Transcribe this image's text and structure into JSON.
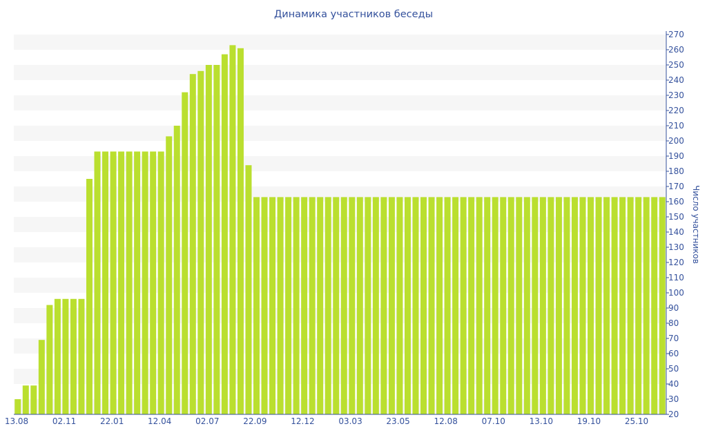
{
  "chart_title": "Динамика участников беседы",
  "chart_data": {
    "type": "bar",
    "title": "Динамика участников беседы",
    "xlabel": "",
    "ylabel": "Число участников",
    "ylim": [
      20,
      270
    ],
    "y_axis_position": "right",
    "y_ticks": [
      20,
      30,
      40,
      50,
      60,
      70,
      80,
      90,
      100,
      110,
      120,
      130,
      140,
      150,
      160,
      170,
      180,
      190,
      200,
      210,
      220,
      230,
      240,
      250,
      260,
      270
    ],
    "x_tick_labels": [
      "13.08",
      "02.11",
      "22.01",
      "12.04",
      "02.07",
      "22.09",
      "12.12",
      "03.03",
      "23.05",
      "12.08",
      "07.10",
      "13.10",
      "19.10",
      "25.10"
    ],
    "grid": "alternating horizontal bands",
    "bar_color": "#badf2f",
    "band_color": "#f6f6f6",
    "text_color": "#34519c",
    "values": [
      30,
      39,
      39,
      69,
      92,
      96,
      96,
      96,
      96,
      175,
      193,
      193,
      193,
      193,
      193,
      193,
      193,
      193,
      193,
      203,
      210,
      232,
      244,
      246,
      250,
      250,
      257,
      263,
      261,
      184,
      163,
      163,
      163,
      163,
      163,
      163,
      163,
      163,
      163,
      163,
      163,
      163,
      163,
      163,
      163,
      163,
      163,
      163,
      163,
      163,
      163,
      163,
      163,
      163,
      163,
      163,
      163,
      163,
      163,
      163,
      163,
      163,
      163,
      163,
      163,
      163,
      163,
      163,
      163,
      163,
      163,
      163,
      163,
      163,
      163,
      163,
      163,
      163,
      163,
      163,
      163,
      163
    ]
  }
}
